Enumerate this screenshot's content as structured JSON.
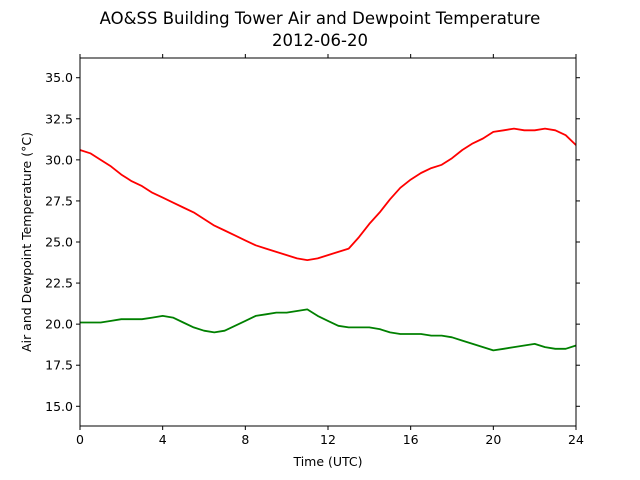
{
  "chart_data": {
    "type": "line",
    "title": "AO&SS Building Tower Air and Dewpoint Temperature",
    "subtitle": "2012-06-20",
    "xlabel": "Time (UTC)",
    "ylabel": "Air and Dewpoint Temperature (°C)",
    "xlim": [
      0,
      24
    ],
    "ylim": [
      13.8,
      36.2
    ],
    "xticks": [
      0,
      4,
      8,
      12,
      16,
      20,
      24
    ],
    "xtick_labels": [
      "0",
      "4",
      "8",
      "12",
      "16",
      "20",
      "24"
    ],
    "yticks": [
      15.0,
      17.5,
      20.0,
      22.5,
      25.0,
      27.5,
      30.0,
      32.5,
      35.0
    ],
    "ytick_labels": [
      "15.0",
      "17.5",
      "20.0",
      "22.5",
      "25.0",
      "27.5",
      "30.0",
      "32.5",
      "35.0"
    ],
    "grid": false,
    "legend": "none",
    "series": [
      {
        "color": "#ff0000",
        "x": [
          0,
          0.5,
          1,
          1.5,
          2,
          2.5,
          3,
          3.5,
          4,
          4.5,
          5,
          5.5,
          6,
          6.5,
          7,
          7.5,
          8,
          8.5,
          9,
          9.5,
          10,
          10.5,
          11,
          11.5,
          12,
          12.5,
          13,
          13.5,
          14,
          14.5,
          15,
          15.5,
          16,
          16.5,
          17,
          17.5,
          18,
          18.5,
          19,
          19.5,
          20,
          20.5,
          21,
          21.5,
          22,
          22.5,
          23,
          23.5,
          24
        ],
        "y": [
          30.6,
          30.4,
          30.0,
          29.6,
          29.1,
          28.7,
          28.4,
          28.0,
          27.7,
          27.4,
          27.1,
          26.8,
          26.4,
          26.0,
          25.7,
          25.4,
          25.1,
          24.8,
          24.6,
          24.4,
          24.2,
          24.0,
          23.9,
          24.0,
          24.2,
          24.4,
          24.6,
          25.3,
          26.1,
          26.8,
          27.6,
          28.3,
          28.8,
          29.2,
          29.5,
          29.7,
          30.1,
          30.6,
          31.0,
          31.3,
          31.7,
          31.8,
          31.9,
          31.8,
          31.8,
          31.9,
          31.8,
          31.5,
          30.9
        ]
      },
      {
        "color": "#008000",
        "x": [
          0,
          0.5,
          1,
          1.5,
          2,
          2.5,
          3,
          3.5,
          4,
          4.5,
          5,
          5.5,
          6,
          6.5,
          7,
          7.5,
          8,
          8.5,
          9,
          9.5,
          10,
          10.5,
          11,
          11.5,
          12,
          12.5,
          13,
          13.5,
          14,
          14.5,
          15,
          15.5,
          16,
          16.5,
          17,
          17.5,
          18,
          18.5,
          19,
          19.5,
          20,
          20.5,
          21,
          21.5,
          22,
          22.5,
          23,
          23.5,
          24
        ],
        "y": [
          20.1,
          20.1,
          20.1,
          20.2,
          20.3,
          20.3,
          20.3,
          20.4,
          20.5,
          20.4,
          20.1,
          19.8,
          19.6,
          19.5,
          19.6,
          19.9,
          20.2,
          20.5,
          20.6,
          20.7,
          20.7,
          20.8,
          20.9,
          20.5,
          20.2,
          19.9,
          19.8,
          19.8,
          19.8,
          19.7,
          19.5,
          19.4,
          19.4,
          19.4,
          19.3,
          19.3,
          19.2,
          19.0,
          18.8,
          18.6,
          18.4,
          18.5,
          18.6,
          18.7,
          18.8,
          18.6,
          18.5,
          18.5,
          18.7
        ]
      }
    ]
  }
}
